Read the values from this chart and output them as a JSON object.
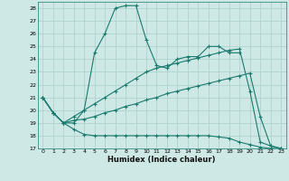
{
  "xlabel": "Humidex (Indice chaleur)",
  "ylabel": "",
  "background_color": "#cde8e5",
  "grid_color": "#aacfcc",
  "line_color": "#1a7a6e",
  "xlim": [
    -0.5,
    23.5
  ],
  "ylim": [
    17,
    28.5
  ],
  "yticks": [
    17,
    18,
    19,
    20,
    21,
    22,
    23,
    24,
    25,
    26,
    27,
    28
  ],
  "xticks": [
    0,
    1,
    2,
    3,
    4,
    5,
    6,
    7,
    8,
    9,
    10,
    11,
    12,
    13,
    14,
    15,
    16,
    17,
    18,
    19,
    20,
    21,
    22,
    23
  ],
  "series": [
    {
      "x": [
        0,
        1,
        2,
        3,
        4,
        5,
        6,
        7,
        8,
        9,
        10,
        11,
        12,
        13,
        14,
        15,
        16,
        17,
        18,
        19,
        20,
        21,
        22,
        23
      ],
      "y": [
        21.0,
        19.8,
        19.0,
        19.0,
        20.0,
        24.5,
        26.0,
        28.0,
        28.2,
        28.2,
        25.5,
        23.5,
        23.3,
        24.0,
        24.2,
        24.2,
        25.0,
        25.0,
        24.5,
        24.5,
        null,
        null,
        null,
        null
      ]
    },
    {
      "x": [
        0,
        1,
        2,
        3,
        4,
        5,
        6,
        7,
        8,
        9,
        10,
        11,
        12,
        13,
        14,
        15,
        16,
        17,
        18,
        19,
        20,
        21,
        22,
        23
      ],
      "y": [
        21.0,
        19.8,
        19.0,
        19.5,
        20.0,
        20.5,
        21.0,
        21.5,
        22.0,
        22.5,
        23.0,
        23.3,
        23.5,
        23.7,
        23.9,
        24.1,
        24.3,
        24.5,
        24.7,
        24.8,
        21.5,
        17.5,
        17.2,
        17.0
      ]
    },
    {
      "x": [
        0,
        1,
        2,
        3,
        4,
        5,
        6,
        7,
        8,
        9,
        10,
        11,
        12,
        13,
        14,
        15,
        16,
        17,
        18,
        19,
        20,
        21,
        22,
        23
      ],
      "y": [
        21.0,
        19.8,
        19.0,
        19.2,
        19.3,
        19.5,
        19.8,
        20.0,
        20.3,
        20.5,
        20.8,
        21.0,
        21.3,
        21.5,
        21.7,
        21.9,
        22.1,
        22.3,
        22.5,
        22.7,
        22.9,
        19.5,
        17.2,
        17.0
      ]
    },
    {
      "x": [
        0,
        1,
        2,
        3,
        4,
        5,
        6,
        7,
        8,
        9,
        10,
        11,
        12,
        13,
        14,
        15,
        16,
        17,
        18,
        19,
        20,
        21,
        22,
        23
      ],
      "y": [
        21.0,
        19.8,
        19.0,
        18.5,
        18.1,
        18.0,
        18.0,
        18.0,
        18.0,
        18.0,
        18.0,
        18.0,
        18.0,
        18.0,
        18.0,
        18.0,
        18.0,
        17.9,
        17.8,
        17.5,
        17.3,
        17.1,
        17.0,
        17.0
      ]
    }
  ]
}
